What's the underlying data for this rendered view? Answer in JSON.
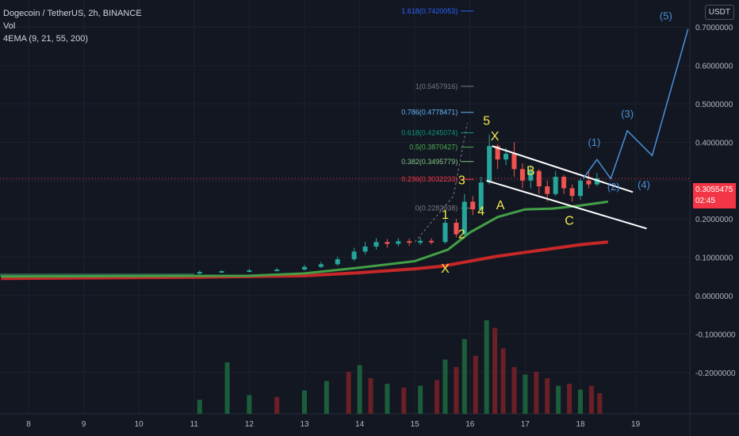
{
  "header": {
    "symbol_line": "Dogecoin / TetherUS, 2h, BINANCE",
    "vol_label": "Vol",
    "ema_label": "4EMA (9, 21, 55, 200)",
    "currency_badge": "USDT"
  },
  "price_tag": {
    "price": "0.3055475",
    "countdown": "02:45"
  },
  "chart_data": {
    "type": "candlestick",
    "x_ticks": [
      "8",
      "9",
      "10",
      "11",
      "12",
      "13",
      "14",
      "15",
      "16",
      "17",
      "18",
      "19"
    ],
    "y_ticks": [
      "0.7000000",
      "0.6000000",
      "0.5000000",
      "0.4000000",
      "0.2000000",
      "0.1000000",
      "0.0000000",
      "-0.1000000",
      "-0.2000000"
    ],
    "ylim": [
      -0.25,
      0.74
    ],
    "grid": true,
    "fib_levels": [
      {
        "label": "1.618(0.7420053)",
        "value": 0.7420053,
        "color": "#2962ff"
      },
      {
        "label": "1(0.5457916)",
        "value": 0.5457916,
        "color": "#787b86"
      },
      {
        "label": "0.786(0.4778471)",
        "value": 0.4778471,
        "color": "#64b5f6"
      },
      {
        "label": "0.618(0.4245074)",
        "value": 0.4245074,
        "color": "#089981"
      },
      {
        "label": "0.5(0.3870427)",
        "value": 0.3870427,
        "color": "#4caf50"
      },
      {
        "label": "0.382(0.3495779)",
        "value": 0.3495779,
        "color": "#81c784"
      },
      {
        "label": "0.236(0.3032233)",
        "value": 0.3032233,
        "color": "#f23645"
      },
      {
        "label": "0(0.2282938)",
        "value": 0.2282938,
        "color": "#787b86"
      }
    ],
    "wave_labels": [
      "X",
      "1",
      "2",
      "3",
      "4",
      "5",
      "X",
      "A",
      "B",
      "C"
    ],
    "projection_labels": [
      "(1)",
      "(2)",
      "(3)",
      "(4)",
      "(5)"
    ],
    "projection_path": [
      [
        18.05,
        0.305
      ],
      [
        18.3,
        0.355
      ],
      [
        18.55,
        0.305
      ],
      [
        18.85,
        0.43
      ],
      [
        19.3,
        0.365
      ],
      [
        19.95,
        0.695
      ]
    ],
    "channel": {
      "upper": [
        [
          16.4,
          0.39
        ],
        [
          18.95,
          0.27
        ]
      ],
      "lower": [
        [
          16.3,
          0.3
        ],
        [
          19.2,
          0.175
        ]
      ]
    },
    "ema_green": [
      [
        7.5,
        0.05
      ],
      [
        12,
        0.052
      ],
      [
        13,
        0.058
      ],
      [
        14,
        0.073
      ],
      [
        15,
        0.09
      ],
      [
        15.6,
        0.12
      ],
      [
        16,
        0.165
      ],
      [
        16.5,
        0.205
      ],
      [
        17,
        0.225
      ],
      [
        17.5,
        0.227
      ],
      [
        18,
        0.235
      ],
      [
        18.5,
        0.245
      ]
    ],
    "ema_red": [
      [
        7.5,
        0.045
      ],
      [
        11,
        0.048
      ],
      [
        13,
        0.052
      ],
      [
        14,
        0.06
      ],
      [
        15,
        0.07
      ],
      [
        15.5,
        0.077
      ],
      [
        16,
        0.09
      ],
      [
        16.5,
        0.103
      ],
      [
        17,
        0.113
      ],
      [
        17.5,
        0.123
      ],
      [
        18,
        0.133
      ],
      [
        18.5,
        0.14
      ]
    ],
    "candles": [
      {
        "t": 11.1,
        "o": 0.058,
        "c": 0.062,
        "h": 0.066,
        "l": 0.055
      },
      {
        "t": 11.5,
        "o": 0.062,
        "c": 0.064,
        "h": 0.067,
        "l": 0.06
      },
      {
        "t": 12.0,
        "o": 0.064,
        "c": 0.066,
        "h": 0.07,
        "l": 0.062
      },
      {
        "t": 12.5,
        "o": 0.066,
        "c": 0.068,
        "h": 0.072,
        "l": 0.064
      },
      {
        "t": 13.0,
        "o": 0.068,
        "c": 0.075,
        "h": 0.08,
        "l": 0.066
      },
      {
        "t": 13.3,
        "o": 0.075,
        "c": 0.082,
        "h": 0.088,
        "l": 0.072
      },
      {
        "t": 13.6,
        "o": 0.082,
        "c": 0.095,
        "h": 0.102,
        "l": 0.078
      },
      {
        "t": 13.9,
        "o": 0.095,
        "c": 0.115,
        "h": 0.125,
        "l": 0.09
      },
      {
        "t": 14.1,
        "o": 0.115,
        "c": 0.128,
        "h": 0.14,
        "l": 0.108
      },
      {
        "t": 14.3,
        "o": 0.128,
        "c": 0.14,
        "h": 0.15,
        "l": 0.12
      },
      {
        "t": 14.5,
        "o": 0.14,
        "c": 0.135,
        "h": 0.148,
        "l": 0.125
      },
      {
        "t": 14.7,
        "o": 0.135,
        "c": 0.142,
        "h": 0.15,
        "l": 0.128
      },
      {
        "t": 14.9,
        "o": 0.142,
        "c": 0.138,
        "h": 0.149,
        "l": 0.13
      },
      {
        "t": 15.1,
        "o": 0.138,
        "c": 0.143,
        "h": 0.152,
        "l": 0.132
      },
      {
        "t": 15.3,
        "o": 0.143,
        "c": 0.14,
        "h": 0.15,
        "l": 0.134
      },
      {
        "t": 15.55,
        "o": 0.14,
        "c": 0.19,
        "h": 0.205,
        "l": 0.135
      },
      {
        "t": 15.75,
        "o": 0.19,
        "c": 0.16,
        "h": 0.2,
        "l": 0.152
      },
      {
        "t": 15.9,
        "o": 0.16,
        "c": 0.245,
        "h": 0.265,
        "l": 0.155
      },
      {
        "t": 16.05,
        "o": 0.245,
        "c": 0.225,
        "h": 0.26,
        "l": 0.21
      },
      {
        "t": 16.2,
        "o": 0.225,
        "c": 0.295,
        "h": 0.31,
        "l": 0.22
      },
      {
        "t": 16.35,
        "o": 0.295,
        "c": 0.39,
        "h": 0.42,
        "l": 0.29
      },
      {
        "t": 16.5,
        "o": 0.39,
        "c": 0.355,
        "h": 0.395,
        "l": 0.33
      },
      {
        "t": 16.65,
        "o": 0.355,
        "c": 0.37,
        "h": 0.385,
        "l": 0.34
      },
      {
        "t": 16.8,
        "o": 0.37,
        "c": 0.33,
        "h": 0.4,
        "l": 0.31
      },
      {
        "t": 16.95,
        "o": 0.33,
        "c": 0.3,
        "h": 0.345,
        "l": 0.28
      },
      {
        "t": 17.1,
        "o": 0.3,
        "c": 0.325,
        "h": 0.34,
        "l": 0.28
      },
      {
        "t": 17.25,
        "o": 0.325,
        "c": 0.285,
        "h": 0.33,
        "l": 0.265
      },
      {
        "t": 17.4,
        "o": 0.285,
        "c": 0.265,
        "h": 0.3,
        "l": 0.245
      },
      {
        "t": 17.55,
        "o": 0.265,
        "c": 0.31,
        "h": 0.325,
        "l": 0.26
      },
      {
        "t": 17.7,
        "o": 0.31,
        "c": 0.28,
        "h": 0.315,
        "l": 0.265
      },
      {
        "t": 17.85,
        "o": 0.28,
        "c": 0.26,
        "h": 0.29,
        "l": 0.245
      },
      {
        "t": 18.0,
        "o": 0.26,
        "c": 0.3,
        "h": 0.305,
        "l": 0.25
      },
      {
        "t": 18.15,
        "o": 0.3,
        "c": 0.29,
        "h": 0.325,
        "l": 0.28
      },
      {
        "t": 18.3,
        "o": 0.29,
        "c": 0.306,
        "h": 0.32,
        "l": 0.285
      }
    ],
    "volume": [
      {
        "t": 11.1,
        "v": 0.15,
        "up": true
      },
      {
        "t": 11.6,
        "v": 0.55,
        "up": true
      },
      {
        "t": 12.0,
        "v": 0.2,
        "up": true
      },
      {
        "t": 12.5,
        "v": 0.18,
        "up": false
      },
      {
        "t": 13.0,
        "v": 0.25,
        "up": true
      },
      {
        "t": 13.4,
        "v": 0.35,
        "up": true
      },
      {
        "t": 13.8,
        "v": 0.45,
        "up": false
      },
      {
        "t": 14.0,
        "v": 0.52,
        "up": true
      },
      {
        "t": 14.2,
        "v": 0.38,
        "up": false
      },
      {
        "t": 14.5,
        "v": 0.32,
        "up": true
      },
      {
        "t": 14.8,
        "v": 0.28,
        "up": false
      },
      {
        "t": 15.1,
        "v": 0.3,
        "up": true
      },
      {
        "t": 15.4,
        "v": 0.36,
        "up": false
      },
      {
        "t": 15.55,
        "v": 0.58,
        "up": true
      },
      {
        "t": 15.75,
        "v": 0.5,
        "up": false
      },
      {
        "t": 15.9,
        "v": 0.8,
        "up": true
      },
      {
        "t": 16.1,
        "v": 0.62,
        "up": false
      },
      {
        "t": 16.3,
        "v": 1.0,
        "up": true
      },
      {
        "t": 16.45,
        "v": 0.92,
        "up": false
      },
      {
        "t": 16.6,
        "v": 0.7,
        "up": false
      },
      {
        "t": 16.8,
        "v": 0.5,
        "up": false
      },
      {
        "t": 17.0,
        "v": 0.42,
        "up": true
      },
      {
        "t": 17.2,
        "v": 0.45,
        "up": false
      },
      {
        "t": 17.4,
        "v": 0.38,
        "up": false
      },
      {
        "t": 17.6,
        "v": 0.3,
        "up": true
      },
      {
        "t": 17.8,
        "v": 0.32,
        "up": false
      },
      {
        "t": 18.0,
        "v": 0.26,
        "up": true
      },
      {
        "t": 18.2,
        "v": 0.3,
        "up": false
      },
      {
        "t": 18.35,
        "v": 0.22,
        "up": false
      }
    ]
  }
}
